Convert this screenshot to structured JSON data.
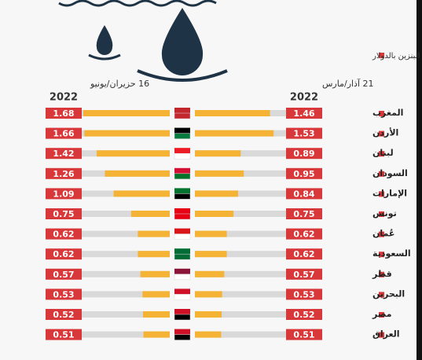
{
  "chart_data": {
    "type": "butterfly-bar",
    "legend_label": "سعر لتر البنزين بالدولار",
    "categories": [
      "المغرب",
      "الأردن",
      "لبنان",
      "السودان",
      "الإمارات",
      "تونس",
      "عُمان",
      "السعودية",
      "قطر",
      "البحرين",
      "مصر",
      "العراق"
    ],
    "series": [
      {
        "name": "21 آذار/مارس",
        "year": "2022",
        "color": "#f5b335",
        "values": [
          1.46,
          1.53,
          0.89,
          0.95,
          0.84,
          0.75,
          0.62,
          0.62,
          0.57,
          0.53,
          0.52,
          0.51
        ]
      },
      {
        "name": "16 حزيران/يونيو",
        "year": "2022",
        "color": "#f5b335",
        "values": [
          1.68,
          1.66,
          1.42,
          1.26,
          1.09,
          0.75,
          0.62,
          0.62,
          0.57,
          0.53,
          0.52,
          0.51
        ]
      }
    ]
  }
}
